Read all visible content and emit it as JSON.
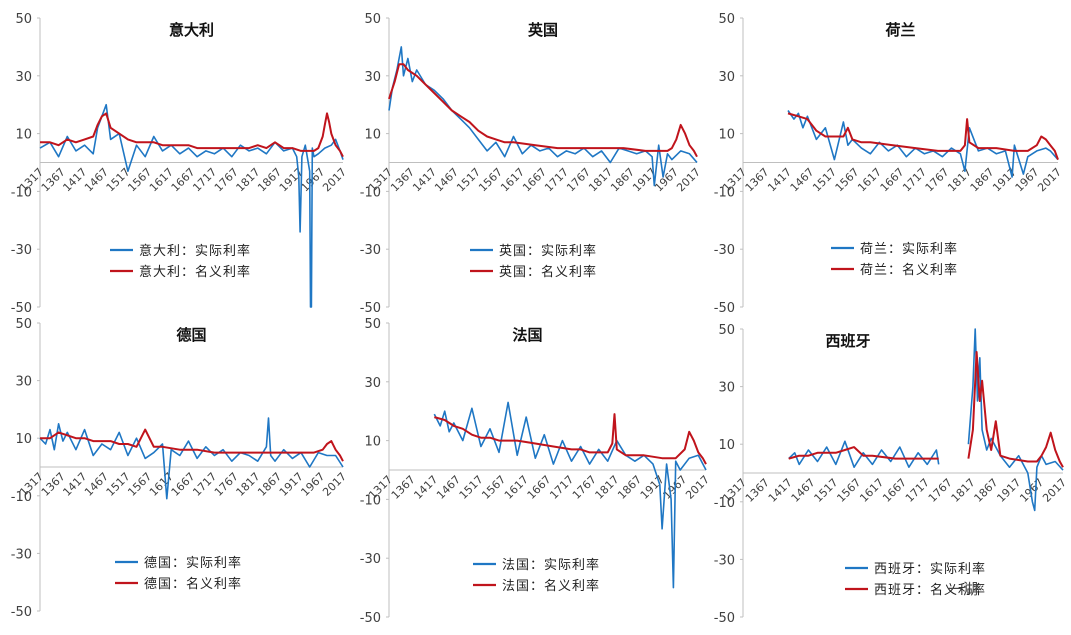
{
  "watermark": "一湖",
  "colors": {
    "real": "#1f77c4",
    "nominal": "#c0141c",
    "axis": "#bfbfbf"
  },
  "chart_data": [
    {
      "type": "line",
      "title": "意大利",
      "ylim": [
        -50,
        50
      ],
      "yticks": [
        50,
        30,
        10,
        -10,
        -30,
        -50
      ],
      "xlim": [
        1317,
        2017
      ],
      "xticks": [
        "1317",
        "1367",
        "1417",
        "1467",
        "1517",
        "1567",
        "1617",
        "1667",
        "1717",
        "1767",
        "1817",
        "1867",
        "1917",
        "1967",
        "2017"
      ],
      "legend_placement": "center",
      "series": [
        {
          "name": "意大利：实际利率",
          "x": [
            1317,
            1340,
            1360,
            1380,
            1400,
            1420,
            1440,
            1450,
            1460,
            1470,
            1480,
            1500,
            1520,
            1540,
            1560,
            1580,
            1600,
            1620,
            1640,
            1660,
            1680,
            1700,
            1720,
            1740,
            1760,
            1780,
            1800,
            1820,
            1840,
            1860,
            1880,
            1900,
            1910,
            1915,
            1918,
            1922,
            1930,
            1940,
            1942,
            1944,
            1946,
            1950,
            1960,
            1975,
            1990,
            2000,
            2010,
            2017
          ],
          "y": [
            5,
            7,
            2,
            9,
            4,
            6,
            3,
            12,
            16,
            20,
            8,
            10,
            -3,
            6,
            2,
            9,
            4,
            6,
            3,
            5,
            2,
            4,
            3,
            5,
            2,
            6,
            4,
            5,
            3,
            7,
            4,
            5,
            2,
            -5,
            -24,
            2,
            6,
            -3,
            -50,
            -50,
            5,
            2,
            3,
            5,
            6,
            8,
            4,
            1
          ]
        },
        {
          "name": "意大利：名义利率",
          "x": [
            1317,
            1340,
            1360,
            1380,
            1400,
            1420,
            1440,
            1450,
            1460,
            1470,
            1480,
            1500,
            1520,
            1540,
            1560,
            1580,
            1600,
            1620,
            1640,
            1660,
            1680,
            1700,
            1720,
            1740,
            1760,
            1780,
            1800,
            1820,
            1840,
            1860,
            1880,
            1900,
            1920,
            1940,
            1950,
            1960,
            1970,
            1975,
            1980,
            1985,
            1990,
            2000,
            2010,
            2017
          ],
          "y": [
            7,
            7,
            6,
            8,
            7,
            8,
            9,
            13,
            16,
            17,
            12,
            10,
            8,
            7,
            7,
            7,
            6,
            6,
            6,
            6,
            5,
            5,
            5,
            5,
            5,
            5,
            5,
            6,
            5,
            7,
            5,
            5,
            4,
            4,
            4,
            5,
            9,
            13,
            17,
            14,
            10,
            6,
            4,
            2
          ]
        }
      ]
    },
    {
      "type": "line",
      "title": "英国",
      "ylim": [
        -50,
        50
      ],
      "yticks": [
        50,
        30,
        10,
        -10,
        -30,
        -50
      ],
      "xlim": [
        1317,
        2017
      ],
      "xticks": [
        "1317",
        "1367",
        "1417",
        "1467",
        "1517",
        "1567",
        "1617",
        "1667",
        "1717",
        "1767",
        "1817",
        "1867",
        "1917",
        "1967",
        "2017"
      ],
      "legend_placement": "center",
      "series": [
        {
          "name": "英国：实际利率",
          "x": [
            1317,
            1325,
            1335,
            1345,
            1350,
            1360,
            1370,
            1380,
            1400,
            1420,
            1440,
            1460,
            1480,
            1500,
            1520,
            1540,
            1560,
            1580,
            1600,
            1620,
            1640,
            1660,
            1680,
            1700,
            1720,
            1740,
            1760,
            1780,
            1800,
            1820,
            1840,
            1860,
            1880,
            1900,
            1915,
            1920,
            1930,
            1940,
            1950,
            1960,
            1980,
            2000,
            2017
          ],
          "y": [
            18,
            26,
            32,
            40,
            30,
            36,
            28,
            32,
            27,
            25,
            22,
            18,
            15,
            12,
            8,
            4,
            7,
            2,
            9,
            3,
            6,
            4,
            5,
            2,
            4,
            3,
            5,
            2,
            4,
            0,
            5,
            4,
            3,
            4,
            2,
            -8,
            6,
            -5,
            3,
            1,
            4,
            3,
            0
          ]
        },
        {
          "name": "英国：名义利率",
          "x": [
            1317,
            1330,
            1340,
            1350,
            1360,
            1380,
            1400,
            1420,
            1440,
            1460,
            1480,
            1500,
            1520,
            1540,
            1560,
            1580,
            1600,
            1650,
            1700,
            1750,
            1800,
            1850,
            1900,
            1930,
            1950,
            1960,
            1970,
            1980,
            1990,
            2000,
            2010,
            2017
          ],
          "y": [
            22,
            28,
            34,
            34,
            32,
            30,
            27,
            24,
            21,
            18,
            16,
            14,
            11,
            9,
            8,
            7,
            7,
            6,
            5,
            5,
            5,
            5,
            4,
            4,
            4,
            5,
            8,
            13,
            10,
            6,
            4,
            2
          ]
        }
      ]
    },
    {
      "type": "line",
      "title": "荷兰",
      "ylim": [
        -50,
        50
      ],
      "yticks": [
        50,
        30,
        10,
        -10,
        -30,
        -50
      ],
      "xlim": [
        1317,
        2017
      ],
      "xticks": [
        "1317",
        "1367",
        "1417",
        "1467",
        "1517",
        "1567",
        "1617",
        "1667",
        "1717",
        "1767",
        "1817",
        "1867",
        "1917",
        "1967",
        "2017"
      ],
      "legend_placement": "center",
      "series": [
        {
          "name": "荷兰：实际利率",
          "x": [
            1417,
            1430,
            1440,
            1450,
            1460,
            1480,
            1500,
            1520,
            1540,
            1550,
            1560,
            1580,
            1600,
            1620,
            1640,
            1660,
            1680,
            1700,
            1720,
            1740,
            1760,
            1780,
            1800,
            1810,
            1820,
            1840,
            1860,
            1880,
            1900,
            1915,
            1920,
            1940,
            1950,
            1970,
            1990,
            2000,
            2017
          ],
          "y": [
            18,
            15,
            17,
            12,
            16,
            8,
            12,
            1,
            14,
            6,
            8,
            5,
            3,
            7,
            4,
            6,
            2,
            5,
            3,
            4,
            2,
            5,
            3,
            -3,
            12,
            4,
            5,
            3,
            4,
            -5,
            6,
            -4,
            2,
            4,
            5,
            4,
            1
          ]
        },
        {
          "name": "荷兰：名义利率",
          "x": [
            1417,
            1440,
            1460,
            1480,
            1500,
            1520,
            1540,
            1550,
            1560,
            1580,
            1600,
            1650,
            1700,
            1750,
            1800,
            1810,
            1815,
            1820,
            1840,
            1880,
            1920,
            1950,
            1970,
            1980,
            1990,
            2000,
            2010,
            2017
          ],
          "y": [
            17,
            16,
            15,
            11,
            9,
            9,
            9,
            12,
            8,
            7,
            7,
            6,
            5,
            4,
            4,
            6,
            15,
            7,
            5,
            5,
            4,
            4,
            6,
            9,
            8,
            6,
            4,
            1
          ]
        }
      ]
    },
    {
      "type": "line",
      "title": "德国",
      "ylim": [
        -50,
        50
      ],
      "yticks": [
        50,
        30,
        10,
        -10,
        -30,
        -50
      ],
      "xlim": [
        1317,
        2017
      ],
      "xticks": [
        "1317",
        "1367",
        "1417",
        "1467",
        "1517",
        "1567",
        "1617",
        "1667",
        "1717",
        "1767",
        "1817",
        "1867",
        "1917",
        "1967",
        "2017"
      ],
      "legend_placement": "center",
      "series": [
        {
          "name": "德国：实际利率",
          "x": [
            1317,
            1330,
            1340,
            1350,
            1360,
            1370,
            1380,
            1400,
            1420,
            1440,
            1460,
            1480,
            1500,
            1520,
            1540,
            1560,
            1580,
            1600,
            1610,
            1620,
            1640,
            1660,
            1680,
            1700,
            1720,
            1740,
            1760,
            1780,
            1800,
            1820,
            1840,
            1845,
            1850,
            1860,
            1880,
            1900,
            1920,
            1940,
            1960,
            1980,
            2000,
            2017
          ],
          "y": [
            10,
            8,
            13,
            6,
            15,
            9,
            12,
            6,
            13,
            4,
            8,
            6,
            12,
            4,
            10,
            3,
            5,
            8,
            -11,
            6,
            4,
            9,
            3,
            7,
            4,
            6,
            2,
            5,
            4,
            2,
            7,
            17,
            4,
            2,
            6,
            3,
            5,
            0,
            5,
            4,
            4,
            0
          ]
        },
        {
          "name": "德国：名义利率",
          "x": [
            1317,
            1340,
            1360,
            1380,
            1400,
            1420,
            1440,
            1460,
            1480,
            1500,
            1520,
            1540,
            1560,
            1580,
            1600,
            1640,
            1680,
            1720,
            1760,
            1800,
            1840,
            1880,
            1920,
            1950,
            1970,
            1980,
            1990,
            2000,
            2010,
            2017
          ],
          "y": [
            10,
            10,
            12,
            11,
            10,
            10,
            9,
            9,
            9,
            8,
            8,
            7,
            13,
            7,
            7,
            6,
            6,
            5,
            5,
            5,
            5,
            5,
            5,
            5,
            6,
            8,
            9,
            6,
            4,
            2
          ]
        }
      ]
    },
    {
      "type": "line",
      "title": "法国",
      "ylim": [
        -50,
        50
      ],
      "yticks": [
        50,
        30,
        10,
        -10,
        -30,
        -50
      ],
      "xlim": [
        1317,
        2017
      ],
      "xticks": [
        "1317",
        "1367",
        "1417",
        "1467",
        "1517",
        "1567",
        "1617",
        "1667",
        "1717",
        "1767",
        "1817",
        "1867",
        "1917",
        "1967",
        "2017"
      ],
      "legend_placement": "center",
      "series": [
        {
          "name": "法国：实际利率",
          "x": [
            1417,
            1430,
            1440,
            1450,
            1460,
            1480,
            1500,
            1520,
            1540,
            1560,
            1580,
            1600,
            1620,
            1640,
            1660,
            1680,
            1700,
            1720,
            1740,
            1760,
            1780,
            1800,
            1820,
            1840,
            1860,
            1880,
            1900,
            1915,
            1920,
            1930,
            1940,
            1945,
            1950,
            1960,
            1980,
            2000,
            2017
          ],
          "y": [
            19,
            15,
            20,
            13,
            16,
            10,
            21,
            8,
            14,
            6,
            23,
            5,
            18,
            4,
            12,
            2,
            10,
            3,
            8,
            2,
            7,
            3,
            10,
            5,
            3,
            5,
            2,
            -5,
            -20,
            2,
            -10,
            -40,
            3,
            0,
            4,
            5,
            0
          ]
        },
        {
          "name": "法国：名义利率",
          "x": [
            1417,
            1440,
            1460,
            1480,
            1500,
            1520,
            1540,
            1560,
            1580,
            1600,
            1640,
            1680,
            1720,
            1740,
            1760,
            1780,
            1800,
            1810,
            1815,
            1820,
            1840,
            1880,
            1920,
            1950,
            1970,
            1980,
            1990,
            2000,
            2010,
            2017
          ],
          "y": [
            18,
            17,
            15,
            14,
            12,
            11,
            11,
            10,
            10,
            10,
            9,
            8,
            7,
            7,
            6,
            6,
            6,
            9,
            19,
            7,
            5,
            5,
            4,
            4,
            7,
            13,
            10,
            6,
            4,
            2
          ]
        }
      ]
    },
    {
      "type": "line",
      "title": "西班牙",
      "ylim": [
        -50,
        50
      ],
      "yticks": [
        50,
        30,
        10,
        -10,
        -30,
        -50
      ],
      "xlim": [
        1317,
        2017
      ],
      "xticks": [
        "1317",
        "1367",
        "1417",
        "1467",
        "1517",
        "1567",
        "1617",
        "1667",
        "1717",
        "1767",
        "1817",
        "1867",
        "1917",
        "1967",
        "2017"
      ],
      "legend_placement": "bottom",
      "series": [
        {
          "name": "西班牙：实际利率",
          "x": [
            1417,
            1430,
            1440,
            1460,
            1480,
            1500,
            1520,
            1540,
            1560,
            1580,
            1600,
            1620,
            1640,
            1660,
            1680,
            1700,
            1720,
            1740,
            1745,
            null,
            1810,
            1820,
            1825,
            1830,
            1835,
            1840,
            1850,
            1860,
            1880,
            1900,
            1920,
            1940,
            1950,
            1955,
            1960,
            1970,
            1980,
            2000,
            2017
          ],
          "y": [
            5,
            7,
            3,
            8,
            4,
            9,
            3,
            11,
            2,
            7,
            3,
            8,
            4,
            9,
            2,
            7,
            3,
            8,
            3,
            null,
            10,
            30,
            50,
            25,
            40,
            15,
            8,
            12,
            6,
            2,
            6,
            0,
            -10,
            -13,
            2,
            6,
            3,
            4,
            1
          ]
        },
        {
          "name": "西班牙：名义利率",
          "x": [
            1417,
            1440,
            1460,
            1480,
            1500,
            1520,
            1540,
            1560,
            1580,
            1600,
            1650,
            1700,
            1745,
            null,
            1810,
            1820,
            1828,
            1835,
            1840,
            1850,
            1860,
            1870,
            1880,
            1900,
            1940,
            1960,
            1970,
            1980,
            1990,
            2000,
            2010,
            2017
          ],
          "y": [
            5,
            6,
            6,
            7,
            7,
            7,
            8,
            9,
            6,
            6,
            5,
            5,
            5,
            null,
            5,
            15,
            42,
            25,
            32,
            15,
            8,
            18,
            6,
            5,
            4,
            4,
            6,
            9,
            14,
            8,
            4,
            2
          ]
        }
      ]
    }
  ]
}
